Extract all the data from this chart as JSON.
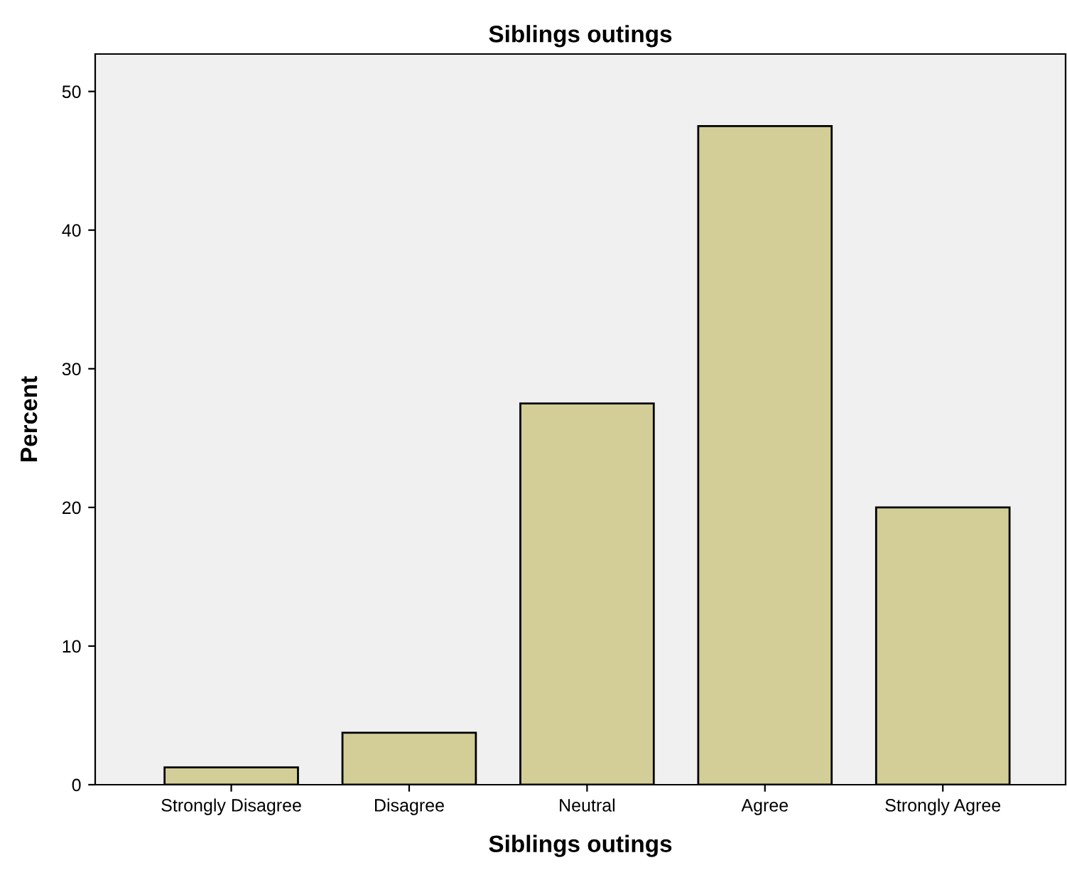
{
  "chart_data": {
    "type": "bar",
    "title": "Siblings outings",
    "xlabel": "Siblings outings",
    "ylabel": "Percent",
    "categories": [
      "Strongly Disagree",
      "Disagree",
      "Neutral",
      "Agree",
      "Strongly Agree"
    ],
    "values": [
      1.25,
      3.75,
      27.5,
      47.5,
      20
    ],
    "color": "#d3ce97",
    "ylim": [
      0,
      52.7
    ],
    "yticks": [
      0,
      10,
      20,
      30,
      40,
      50
    ],
    "grid": false
  }
}
